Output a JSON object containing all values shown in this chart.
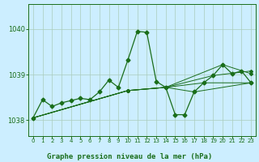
{
  "title": "Graphe pression niveau de la mer (hPa)",
  "bg_color": "#cceeff",
  "line_color": "#1a6e1a",
  "grid_color": "#aaccbb",
  "xlabel_color": "#1a6e1a",
  "ylim": [
    1037.65,
    1040.55
  ],
  "xlim": [
    -0.5,
    23.5
  ],
  "yticks": [
    1038,
    1039,
    1040
  ],
  "xticks": [
    0,
    1,
    2,
    3,
    4,
    5,
    6,
    7,
    8,
    9,
    10,
    11,
    12,
    13,
    14,
    15,
    16,
    17,
    18,
    19,
    20,
    21,
    22,
    23
  ],
  "series": [
    [
      0,
      1038.05
    ],
    [
      1,
      1038.45
    ],
    [
      2,
      1038.3
    ],
    [
      3,
      1038.38
    ],
    [
      4,
      1038.43
    ],
    [
      5,
      1038.48
    ],
    [
      6,
      1038.45
    ],
    [
      7,
      1038.62
    ],
    [
      8,
      1038.88
    ],
    [
      9,
      1038.72
    ],
    [
      10,
      1039.32
    ],
    [
      11,
      1039.95
    ],
    [
      12,
      1039.93
    ],
    [
      13,
      1038.85
    ],
    [
      14,
      1038.72
    ],
    [
      15,
      1038.12
    ],
    [
      16,
      1038.12
    ],
    [
      17,
      1038.62
    ],
    [
      18,
      1038.82
    ],
    [
      19,
      1038.98
    ],
    [
      20,
      1039.22
    ],
    [
      21,
      1039.02
    ],
    [
      22,
      1039.08
    ],
    [
      23,
      1038.82
    ]
  ],
  "extra_lines": [
    [
      [
        0,
        1038.05
      ],
      [
        10,
        1038.65
      ],
      [
        14,
        1038.72
      ],
      [
        20,
        1039.22
      ],
      [
        23,
        1039.02
      ]
    ],
    [
      [
        0,
        1038.05
      ],
      [
        10,
        1038.65
      ],
      [
        14,
        1038.72
      ],
      [
        19,
        1038.98
      ],
      [
        23,
        1039.08
      ]
    ],
    [
      [
        0,
        1038.05
      ],
      [
        10,
        1038.65
      ],
      [
        14,
        1038.72
      ],
      [
        18,
        1038.82
      ],
      [
        23,
        1038.82
      ]
    ],
    [
      [
        0,
        1038.05
      ],
      [
        10,
        1038.65
      ],
      [
        14,
        1038.72
      ],
      [
        17,
        1038.62
      ],
      [
        23,
        1038.82
      ]
    ]
  ],
  "figsize": [
    3.2,
    2.0
  ],
  "dpi": 100
}
